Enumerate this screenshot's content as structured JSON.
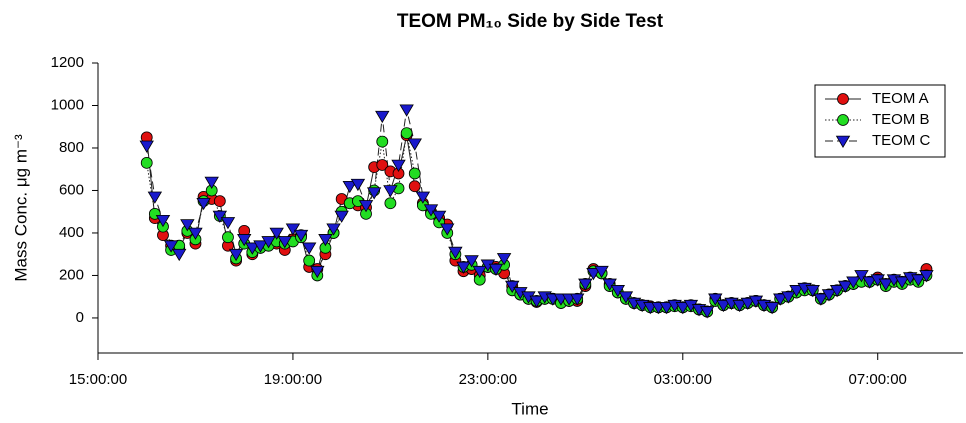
{
  "chart_data": {
    "type": "line",
    "title": "TEOM PM₁₀ Side by Side Test",
    "x_label": "Time",
    "y_label": "Mass Conc. μg m⁻³",
    "xlim": [
      "15:00:00",
      "08:45:00"
    ],
    "xticks": [
      "15:00:00",
      "19:00:00",
      "23:00:00",
      "03:00:00",
      "07:00:00"
    ],
    "ylim": [
      -165,
      1200
    ],
    "yticks": [
      0,
      200,
      400,
      600,
      800,
      1000,
      1200
    ],
    "legend": "upper right",
    "x": [
      "16:00:00",
      "16:10:00",
      "16:20:00",
      "16:30:00",
      "16:40:00",
      "16:50:00",
      "17:00:00",
      "17:10:00",
      "17:20:00",
      "17:30:00",
      "17:40:00",
      "17:50:00",
      "18:00:00",
      "18:10:00",
      "18:20:00",
      "18:30:00",
      "18:40:00",
      "18:50:00",
      "19:00:00",
      "19:10:00",
      "19:20:00",
      "19:30:00",
      "19:40:00",
      "19:50:00",
      "20:00:00",
      "20:10:00",
      "20:20:00",
      "20:30:00",
      "20:40:00",
      "20:50:00",
      "21:00:00",
      "21:10:00",
      "21:20:00",
      "21:30:00",
      "21:40:00",
      "21:50:00",
      "22:00:00",
      "22:10:00",
      "22:20:00",
      "22:30:00",
      "22:40:00",
      "22:50:00",
      "23:00:00",
      "23:10:00",
      "23:20:00",
      "23:30:00",
      "23:40:00",
      "23:50:00",
      "00:00:00",
      "00:10:00",
      "00:20:00",
      "00:30:00",
      "00:40:00",
      "00:50:00",
      "01:00:00",
      "01:10:00",
      "01:20:00",
      "01:30:00",
      "01:40:00",
      "01:50:00",
      "02:00:00",
      "02:10:00",
      "02:20:00",
      "02:30:00",
      "02:40:00",
      "02:50:00",
      "03:00:00",
      "03:10:00",
      "03:20:00",
      "03:30:00",
      "03:40:00",
      "03:50:00",
      "04:00:00",
      "04:10:00",
      "04:20:00",
      "04:30:00",
      "04:40:00",
      "04:50:00",
      "05:00:00",
      "05:10:00",
      "05:20:00",
      "05:30:00",
      "05:40:00",
      "05:50:00",
      "06:00:00",
      "06:10:00",
      "06:20:00",
      "06:30:00",
      "06:40:00",
      "06:50:00",
      "07:00:00",
      "07:10:00",
      "07:20:00",
      "07:30:00",
      "07:40:00",
      "07:50:00",
      "08:00:00"
    ],
    "series": [
      {
        "name": "TEOM A",
        "color": "#e01010",
        "marker": "circle",
        "line_style": "solid",
        "values": [
          850,
          470,
          390,
          340,
          330,
          400,
          350,
          570,
          560,
          550,
          340,
          270,
          410,
          300,
          330,
          340,
          350,
          320,
          370,
          390,
          240,
          230,
          300,
          400,
          560,
          540,
          530,
          520,
          710,
          720,
          690,
          680,
          860,
          620,
          540,
          500,
          470,
          440,
          270,
          220,
          230,
          200,
          240,
          240,
          210,
          150,
          110,
          90,
          75,
          90,
          90,
          80,
          80,
          80,
          150,
          230,
          210,
          160,
          120,
          90,
          70,
          60,
          55,
          50,
          50,
          60,
          50,
          60,
          40,
          30,
          90,
          60,
          70,
          60,
          70,
          80,
          60,
          50,
          90,
          100,
          120,
          140,
          130,
          90,
          110,
          130,
          150,
          160,
          180,
          170,
          190,
          160,
          180,
          170,
          190,
          180,
          230
        ]
      },
      {
        "name": "TEOM B",
        "color": "#22dd22",
        "marker": "circle",
        "line_style": "dotted",
        "values": [
          730,
          490,
          430,
          320,
          340,
          410,
          370,
          550,
          600,
          480,
          380,
          280,
          350,
          310,
          330,
          340,
          360,
          350,
          360,
          380,
          270,
          200,
          330,
          400,
          500,
          540,
          550,
          490,
          600,
          830,
          540,
          610,
          870,
          680,
          530,
          490,
          450,
          400,
          300,
          240,
          250,
          180,
          240,
          230,
          250,
          130,
          110,
          90,
          80,
          90,
          90,
          70,
          80,
          90,
          160,
          220,
          210,
          150,
          120,
          90,
          70,
          60,
          50,
          50,
          50,
          55,
          50,
          55,
          40,
          30,
          80,
          60,
          70,
          60,
          70,
          80,
          60,
          50,
          90,
          100,
          120,
          130,
          130,
          90,
          110,
          130,
          150,
          160,
          170,
          170,
          180,
          150,
          170,
          160,
          180,
          170,
          200
        ]
      },
      {
        "name": "TEOM C",
        "color": "#1a1acc",
        "marker": "triangle-down",
        "line_style": "dashed",
        "values": [
          810,
          570,
          460,
          340,
          300,
          440,
          400,
          540,
          640,
          480,
          450,
          300,
          370,
          330,
          340,
          360,
          400,
          360,
          420,
          390,
          330,
          220,
          370,
          420,
          480,
          620,
          630,
          530,
          590,
          950,
          600,
          720,
          980,
          820,
          570,
          510,
          480,
          420,
          310,
          240,
          270,
          220,
          250,
          230,
          280,
          150,
          120,
          100,
          80,
          100,
          90,
          90,
          90,
          90,
          160,
          210,
          220,
          160,
          130,
          100,
          70,
          60,
          50,
          50,
          50,
          60,
          50,
          60,
          40,
          30,
          90,
          60,
          70,
          60,
          70,
          80,
          60,
          50,
          90,
          100,
          130,
          140,
          130,
          90,
          110,
          130,
          150,
          170,
          200,
          170,
          180,
          160,
          180,
          170,
          190,
          180,
          200
        ]
      }
    ]
  }
}
